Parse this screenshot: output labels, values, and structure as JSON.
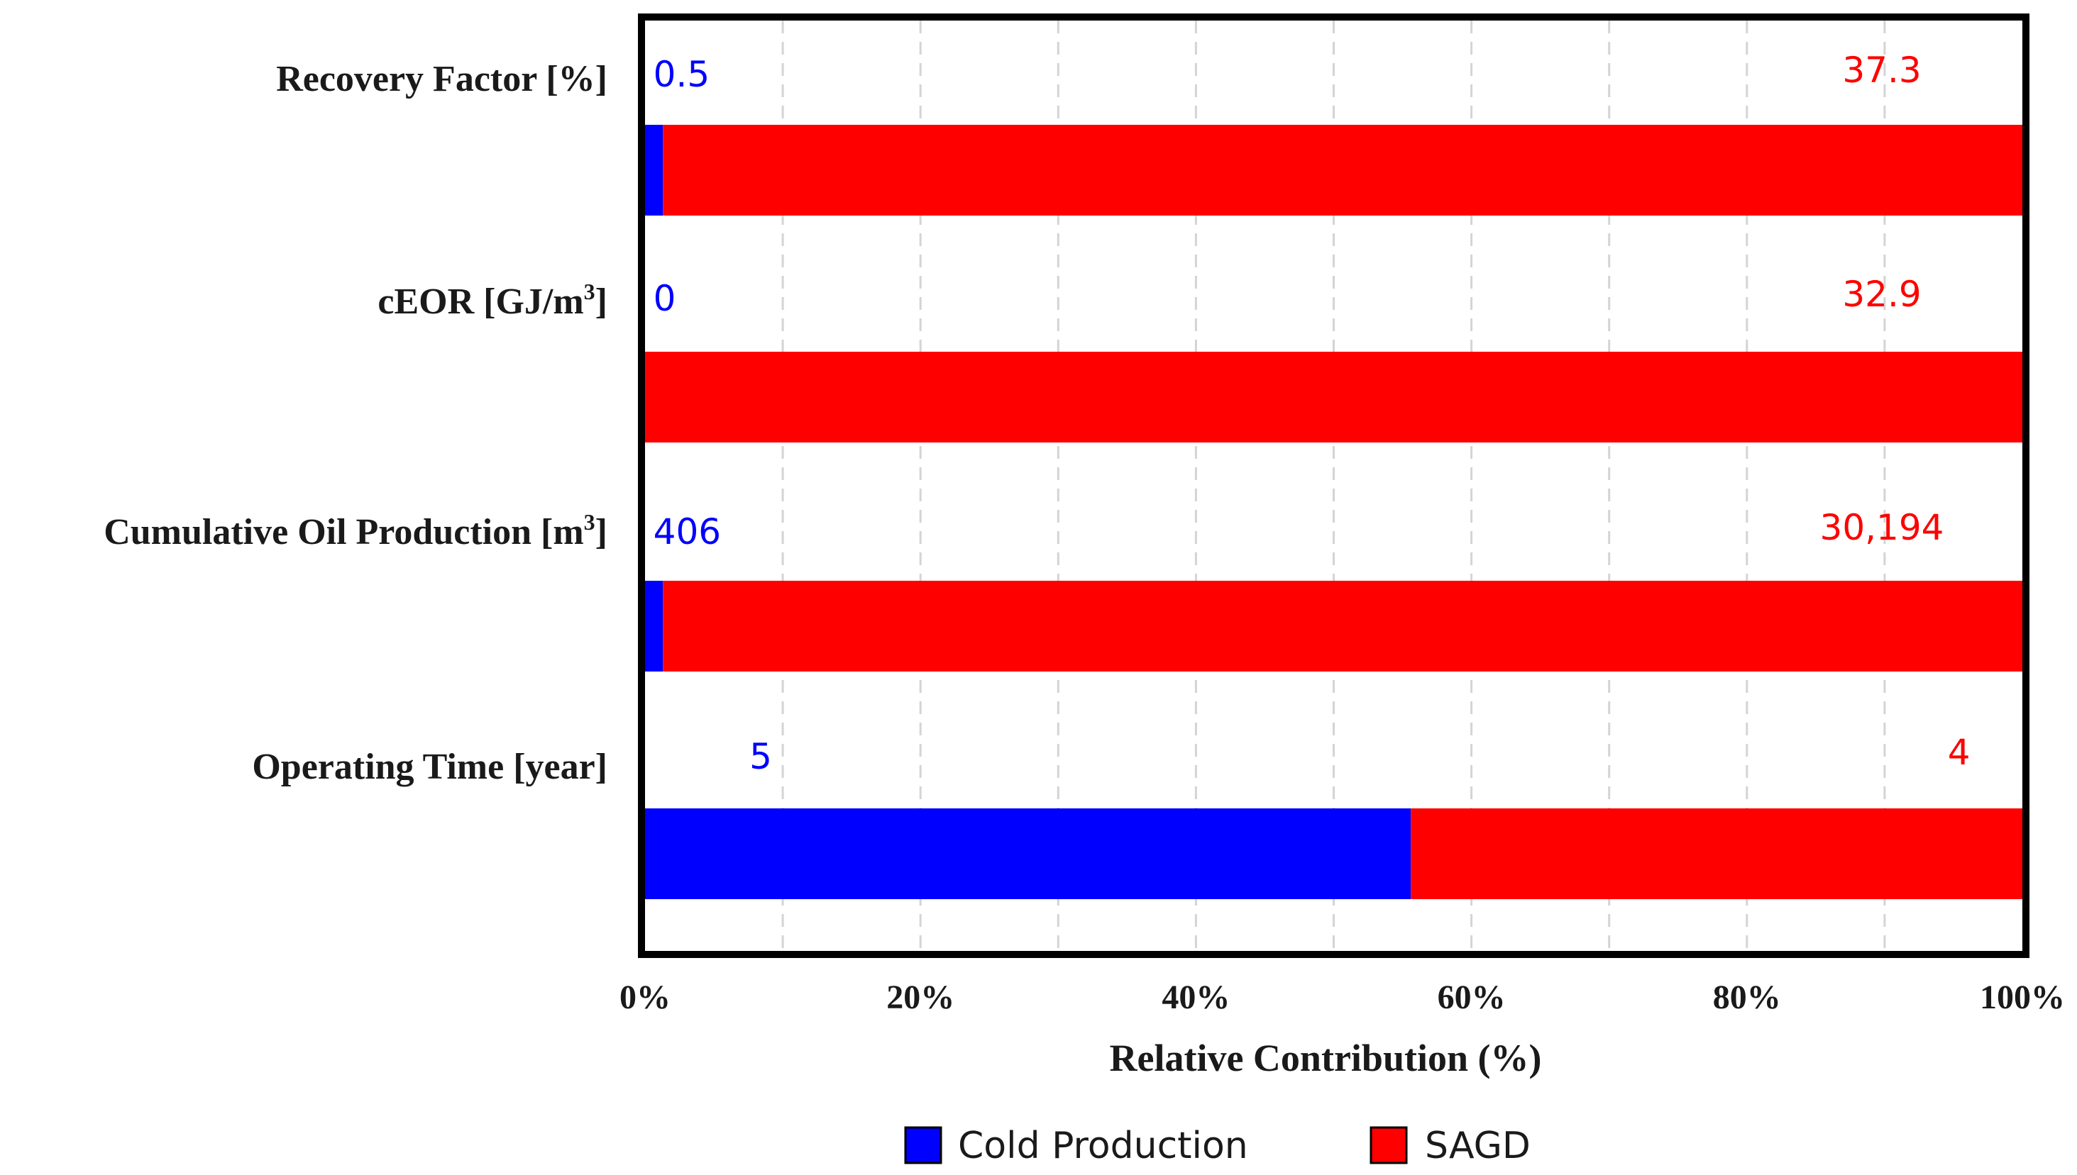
{
  "chart_data": {
    "type": "bar",
    "orientation": "horizontal",
    "stacked": true,
    "normalized": true,
    "title": "",
    "xlabel": "Relative Contribution (%)",
    "ylabel": "",
    "xlim": [
      0,
      100
    ],
    "x_ticks": [
      "0%",
      "20%",
      "40%",
      "60%",
      "80%",
      "100%"
    ],
    "grid": true,
    "legend_position": "bottom",
    "categories": [
      {
        "name": "Recovery Factor [%]",
        "base": "Recovery Factor [%]",
        "sup": ""
      },
      {
        "name": "cEOR [GJ/m3]",
        "base": "cEOR [GJ/m",
        "sup": "3",
        "tail": "]"
      },
      {
        "name": "Cumulative Oil Production [m3]",
        "base": "Cumulative Oil Production [m",
        "sup": "3",
        "tail": "]"
      },
      {
        "name": "Operating Time [year]",
        "base": "Operating Time [year]",
        "sup": ""
      }
    ],
    "series": [
      {
        "name": "Cold Production",
        "color": "#0000ff",
        "values": [
          1.3,
          0,
          1.3,
          55.6
        ],
        "labels": [
          "0.5",
          "0",
          "406",
          "5"
        ]
      },
      {
        "name": "SAGD",
        "color": "#ff0000",
        "values": [
          98.7,
          100,
          98.7,
          44.4
        ],
        "labels": [
          "37.3",
          "32.9",
          "30,194",
          "4"
        ]
      }
    ]
  }
}
